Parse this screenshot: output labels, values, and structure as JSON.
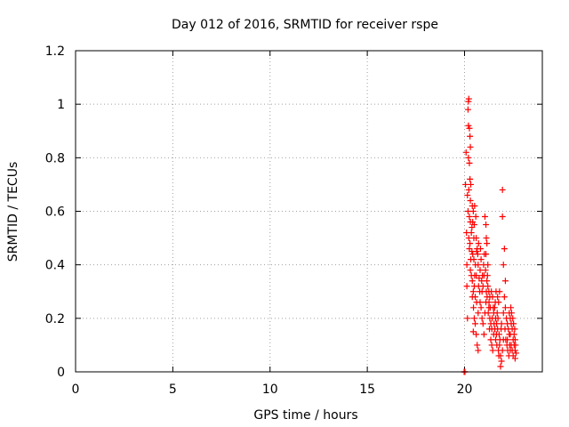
{
  "chart_data": {
    "type": "scatter",
    "title": "Day 012 of 2016, SRMTID for receiver rspe",
    "xlabel": "GPS time / hours",
    "ylabel": "SRMTID / TECUs",
    "xlim": [
      0,
      24
    ],
    "ylim": [
      0,
      1.2
    ],
    "x_ticks": [
      0,
      5,
      10,
      15,
      20
    ],
    "x_tick_labels": [
      "0",
      "5",
      "10",
      "15",
      "20"
    ],
    "y_ticks": [
      0,
      0.2,
      0.4,
      0.6,
      0.8,
      1.0,
      1.2
    ],
    "y_tick_labels": [
      "0",
      "0.2",
      "0.4",
      "0.6",
      "0.8",
      "1",
      "1.2"
    ],
    "grid": true,
    "marker": "+",
    "color": "#ff0000",
    "series": [
      {
        "name": "SRMTID",
        "points": [
          [
            19.98,
            0.0
          ],
          [
            20.0,
            0.0
          ],
          [
            20.02,
            0.0
          ],
          [
            20.05,
            0.7
          ],
          [
            20.08,
            0.82
          ],
          [
            20.1,
            0.52
          ],
          [
            20.12,
            0.32
          ],
          [
            20.12,
            0.4
          ],
          [
            20.15,
            0.2
          ],
          [
            20.18,
            0.98
          ],
          [
            20.2,
            1.01
          ],
          [
            20.22,
            1.02
          ],
          [
            20.2,
            0.92
          ],
          [
            20.25,
            0.91
          ],
          [
            20.28,
            0.88
          ],
          [
            20.2,
            0.8
          ],
          [
            20.25,
            0.78
          ],
          [
            20.3,
            0.84
          ],
          [
            20.32,
            0.7
          ],
          [
            20.28,
            0.72
          ],
          [
            20.22,
            0.68
          ],
          [
            20.18,
            0.6
          ],
          [
            20.25,
            0.58
          ],
          [
            20.3,
            0.56
          ],
          [
            20.22,
            0.5
          ],
          [
            20.28,
            0.48
          ],
          [
            20.35,
            0.52
          ],
          [
            20.4,
            0.62
          ],
          [
            20.45,
            0.6
          ],
          [
            20.5,
            0.55
          ],
          [
            20.38,
            0.45
          ],
          [
            20.42,
            0.44
          ],
          [
            20.48,
            0.42
          ],
          [
            20.3,
            0.38
          ],
          [
            20.35,
            0.36
          ],
          [
            20.4,
            0.34
          ],
          [
            20.45,
            0.3
          ],
          [
            20.5,
            0.32
          ],
          [
            20.55,
            0.28
          ],
          [
            20.6,
            0.5
          ],
          [
            20.65,
            0.46
          ],
          [
            20.7,
            0.4
          ],
          [
            20.6,
            0.36
          ],
          [
            20.62,
            0.26
          ],
          [
            20.7,
            0.22
          ],
          [
            20.55,
            0.18
          ],
          [
            20.6,
            0.14
          ],
          [
            20.65,
            0.1
          ],
          [
            20.7,
            0.08
          ],
          [
            20.5,
            0.2
          ],
          [
            20.45,
            0.15
          ],
          [
            20.75,
            0.35
          ],
          [
            20.8,
            0.38
          ],
          [
            20.85,
            0.42
          ],
          [
            20.9,
            0.3
          ],
          [
            20.95,
            0.32
          ],
          [
            21.0,
            0.36
          ],
          [
            20.8,
            0.26
          ],
          [
            20.85,
            0.24
          ],
          [
            20.9,
            0.2
          ],
          [
            20.95,
            0.18
          ],
          [
            21.0,
            0.14
          ],
          [
            21.05,
            0.22
          ],
          [
            21.05,
            0.58
          ],
          [
            21.1,
            0.55
          ],
          [
            21.12,
            0.5
          ],
          [
            21.15,
            0.48
          ],
          [
            21.1,
            0.44
          ],
          [
            21.2,
            0.4
          ],
          [
            21.15,
            0.34
          ],
          [
            21.2,
            0.32
          ],
          [
            21.25,
            0.3
          ],
          [
            21.3,
            0.28
          ],
          [
            21.1,
            0.26
          ],
          [
            21.25,
            0.24
          ],
          [
            21.3,
            0.2
          ],
          [
            21.35,
            0.18
          ],
          [
            21.4,
            0.16
          ],
          [
            21.35,
            0.12
          ],
          [
            21.4,
            0.1
          ],
          [
            21.45,
            0.08
          ],
          [
            21.5,
            0.22
          ],
          [
            21.55,
            0.24
          ],
          [
            21.6,
            0.2
          ],
          [
            21.65,
            0.18
          ],
          [
            21.5,
            0.14
          ],
          [
            21.6,
            0.12
          ],
          [
            21.7,
            0.28
          ],
          [
            21.75,
            0.26
          ],
          [
            21.8,
            0.3
          ],
          [
            21.7,
            0.16
          ],
          [
            21.8,
            0.1
          ],
          [
            21.85,
            0.06
          ],
          [
            21.9,
            0.04
          ],
          [
            21.85,
            0.02
          ],
          [
            21.95,
            0.08
          ],
          [
            22.0,
            0.12
          ],
          [
            21.9,
            0.18
          ],
          [
            22.0,
            0.22
          ],
          [
            21.95,
            0.68
          ],
          [
            21.95,
            0.58
          ],
          [
            22.05,
            0.46
          ],
          [
            22.0,
            0.4
          ],
          [
            22.1,
            0.34
          ],
          [
            22.05,
            0.28
          ],
          [
            22.1,
            0.24
          ],
          [
            22.15,
            0.2
          ],
          [
            22.2,
            0.18
          ],
          [
            22.25,
            0.16
          ],
          [
            22.3,
            0.14
          ],
          [
            22.2,
            0.12
          ],
          [
            22.3,
            0.22
          ],
          [
            22.35,
            0.2
          ],
          [
            22.4,
            0.18
          ],
          [
            22.35,
            0.14
          ],
          [
            22.4,
            0.1
          ],
          [
            22.45,
            0.16
          ],
          [
            22.5,
            0.12
          ],
          [
            22.55,
            0.1
          ],
          [
            22.6,
            0.08
          ],
          [
            22.55,
            0.14
          ],
          [
            22.6,
            0.12
          ],
          [
            22.62,
            0.1
          ],
          [
            22.65,
            0.07
          ],
          [
            22.6,
            0.05
          ],
          [
            22.5,
            0.06
          ],
          [
            22.45,
            0.08
          ],
          [
            20.15,
            0.66
          ],
          [
            20.3,
            0.64
          ],
          [
            20.52,
            0.62
          ],
          [
            20.58,
            0.58
          ],
          [
            20.48,
            0.5
          ],
          [
            20.62,
            0.45
          ],
          [
            20.72,
            0.32
          ],
          [
            20.78,
            0.3
          ],
          [
            20.88,
            0.34
          ],
          [
            20.98,
            0.4
          ],
          [
            21.02,
            0.44
          ],
          [
            21.08,
            0.38
          ],
          [
            21.18,
            0.36
          ],
          [
            21.22,
            0.22
          ],
          [
            21.28,
            0.16
          ],
          [
            21.42,
            0.2
          ],
          [
            21.48,
            0.24
          ],
          [
            21.58,
            0.26
          ],
          [
            21.62,
            0.3
          ],
          [
            21.68,
            0.22
          ],
          [
            21.72,
            0.2
          ],
          [
            21.78,
            0.14
          ],
          [
            21.82,
            0.12
          ],
          [
            21.88,
            0.16
          ],
          [
            22.08,
            0.16
          ],
          [
            22.12,
            0.12
          ],
          [
            22.18,
            0.1
          ],
          [
            22.22,
            0.08
          ],
          [
            22.28,
            0.06
          ],
          [
            22.32,
            0.1
          ],
          [
            22.38,
            0.24
          ],
          [
            22.42,
            0.22
          ],
          [
            22.48,
            0.2
          ],
          [
            22.52,
            0.18
          ],
          [
            22.58,
            0.16
          ],
          [
            22.35,
            0.08
          ],
          [
            20.38,
            0.54
          ],
          [
            20.42,
            0.56
          ],
          [
            20.25,
            0.46
          ],
          [
            20.32,
            0.42
          ],
          [
            20.4,
            0.28
          ],
          [
            20.46,
            0.24
          ],
          [
            20.52,
            0.36
          ],
          [
            20.56,
            0.4
          ],
          [
            20.68,
            0.44
          ],
          [
            20.72,
            0.48
          ],
          [
            20.82,
            0.46
          ],
          [
            20.92,
            0.36
          ],
          [
            21.12,
            0.3
          ],
          [
            21.16,
            0.28
          ],
          [
            21.26,
            0.26
          ],
          [
            21.32,
            0.24
          ],
          [
            21.38,
            0.3
          ],
          [
            21.44,
            0.28
          ],
          [
            21.52,
            0.18
          ],
          [
            21.56,
            0.16
          ],
          [
            21.64,
            0.14
          ],
          [
            21.66,
            0.1
          ],
          [
            21.74,
            0.08
          ],
          [
            21.76,
            0.06
          ]
        ]
      }
    ]
  }
}
